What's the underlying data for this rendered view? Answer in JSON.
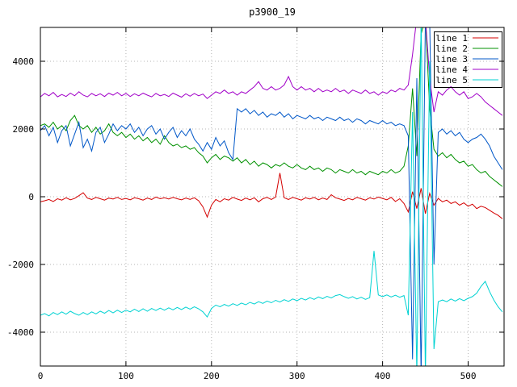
{
  "chart_data": {
    "type": "line",
    "title": "p3900_19",
    "xlabel": "",
    "ylabel": "",
    "xlim": [
      0,
      542
    ],
    "ylim": [
      -5000,
      5000
    ],
    "xticks": [
      0,
      100,
      200,
      300,
      400,
      500
    ],
    "yticks": [
      -4000,
      -2000,
      0,
      2000,
      4000
    ],
    "grid": true,
    "legend_position": "top-right",
    "x_start": 0,
    "x_step": 5,
    "series": [
      {
        "name": "line 1",
        "color": "#d40000",
        "values": [
          -150,
          -120,
          -80,
          -140,
          -60,
          -100,
          -30,
          -90,
          -50,
          30,
          120,
          -40,
          -80,
          -20,
          -60,
          -100,
          -40,
          -70,
          -20,
          -80,
          -50,
          -90,
          -30,
          -60,
          -100,
          -40,
          -80,
          -10,
          -60,
          -30,
          -70,
          -20,
          -60,
          -90,
          -40,
          -80,
          -30,
          -120,
          -300,
          -600,
          -250,
          -80,
          -150,
          -60,
          -100,
          -20,
          -70,
          -110,
          -40,
          -90,
          -30,
          -150,
          -60,
          -20,
          -80,
          -10,
          700,
          -30,
          -80,
          -20,
          -60,
          -100,
          -30,
          -70,
          -20,
          -90,
          -40,
          -80,
          60,
          -30,
          -70,
          -110,
          -50,
          -90,
          -20,
          -60,
          -100,
          -30,
          -70,
          -10,
          -50,
          -90,
          -20,
          -140,
          -60,
          -200,
          -450,
          150,
          -350,
          250,
          -500,
          100,
          -250,
          -50,
          -150,
          -100,
          -200,
          -150,
          -250,
          -180,
          -280,
          -220,
          -350,
          -280,
          -320,
          -400,
          -480,
          -550,
          -650
        ]
      },
      {
        "name": "line 2",
        "color": "#009100",
        "values": [
          2100,
          2150,
          2050,
          2200,
          2000,
          2100,
          1950,
          2250,
          2400,
          2100,
          2000,
          2100,
          1900,
          2050,
          1850,
          1950,
          2150,
          1900,
          1800,
          1900,
          1750,
          1850,
          1700,
          1800,
          1650,
          1750,
          1600,
          1700,
          1550,
          1800,
          1600,
          1500,
          1550,
          1450,
          1500,
          1400,
          1450,
          1300,
          1200,
          1000,
          1150,
          1250,
          1100,
          1200,
          1150,
          1050,
          1150,
          1000,
          1100,
          950,
          1050,
          900,
          1000,
          950,
          850,
          950,
          900,
          1000,
          900,
          850,
          950,
          850,
          800,
          900,
          800,
          850,
          750,
          850,
          800,
          700,
          800,
          750,
          700,
          800,
          700,
          750,
          650,
          750,
          700,
          650,
          750,
          700,
          800,
          700,
          750,
          900,
          1500,
          3200,
          1200,
          4800,
          5300,
          2600,
          1400,
          1200,
          1300,
          1150,
          1250,
          1100,
          1000,
          1050,
          900,
          950,
          800,
          700,
          750,
          600,
          500,
          400,
          300
        ]
      },
      {
        "name": "line 3",
        "color": "#0057c8",
        "values": [
          1950,
          2100,
          1800,
          2050,
          1600,
          1950,
          2100,
          1500,
          1850,
          2200,
          1450,
          1700,
          1350,
          1900,
          2050,
          1600,
          1850,
          2150,
          1950,
          2100,
          2000,
          2150,
          1900,
          2050,
          1800,
          2000,
          2100,
          1850,
          2000,
          1700,
          1900,
          2050,
          1750,
          1950,
          1800,
          2000,
          1700,
          1550,
          1350,
          1600,
          1400,
          1750,
          1500,
          1650,
          1300,
          1100,
          2600,
          2500,
          2600,
          2450,
          2550,
          2400,
          2500,
          2350,
          2450,
          2400,
          2500,
          2350,
          2450,
          2300,
          2400,
          2350,
          2300,
          2400,
          2300,
          2350,
          2250,
          2350,
          2300,
          2250,
          2350,
          2250,
          2300,
          2200,
          2300,
          2250,
          2150,
          2250,
          2200,
          2150,
          2250,
          2150,
          2200,
          2100,
          2150,
          2100,
          1800,
          -4800,
          3500,
          -5300,
          5300,
          5200,
          -2000,
          1900,
          2000,
          1850,
          1950,
          1800,
          1900,
          1700,
          1600,
          1700,
          1750,
          1850,
          1700,
          1500,
          1200,
          1000,
          800
        ]
      },
      {
        "name": "line 4",
        "color": "#a100c8",
        "values": [
          2950,
          3050,
          2980,
          3080,
          2950,
          3020,
          2960,
          3060,
          2980,
          3100,
          3000,
          2950,
          3050,
          2980,
          3040,
          2960,
          3060,
          3000,
          3080,
          2980,
          3050,
          2960,
          3040,
          2980,
          3060,
          3000,
          2950,
          3050,
          2980,
          3020,
          2960,
          3060,
          3000,
          2940,
          3040,
          2970,
          3050,
          2980,
          3030,
          2900,
          3000,
          3100,
          3050,
          3150,
          3050,
          3100,
          3000,
          3100,
          3050,
          3150,
          3250,
          3400,
          3200,
          3150,
          3250,
          3150,
          3200,
          3300,
          3550,
          3250,
          3150,
          3250,
          3150,
          3200,
          3100,
          3200,
          3100,
          3150,
          3100,
          3200,
          3100,
          3150,
          3050,
          3150,
          3100,
          3050,
          3150,
          3050,
          3100,
          3000,
          3100,
          3050,
          3150,
          3100,
          3200,
          3150,
          3300,
          4200,
          5300,
          5300,
          5300,
          3500,
          2500,
          3100,
          3000,
          3150,
          3250,
          3100,
          3000,
          3100,
          2900,
          2950,
          3050,
          2950,
          2800,
          2700,
          2600,
          2500,
          2400
        ]
      },
      {
        "name": "line 5",
        "color": "#00d2d2",
        "values": [
          -3500,
          -3450,
          -3520,
          -3420,
          -3480,
          -3400,
          -3470,
          -3380,
          -3450,
          -3500,
          -3420,
          -3480,
          -3400,
          -3460,
          -3380,
          -3440,
          -3360,
          -3430,
          -3350,
          -3420,
          -3350,
          -3400,
          -3320,
          -3390,
          -3310,
          -3380,
          -3300,
          -3360,
          -3290,
          -3350,
          -3280,
          -3340,
          -3270,
          -3330,
          -3260,
          -3320,
          -3250,
          -3310,
          -3400,
          -3550,
          -3300,
          -3200,
          -3250,
          -3180,
          -3230,
          -3160,
          -3210,
          -3140,
          -3190,
          -3120,
          -3170,
          -3100,
          -3150,
          -3080,
          -3130,
          -3060,
          -3110,
          -3040,
          -3090,
          -3020,
          -3070,
          -3000,
          -3050,
          -2980,
          -3030,
          -2960,
          -3010,
          -2940,
          -2990,
          -2920,
          -2890,
          -2950,
          -3000,
          -2950,
          -3020,
          -2970,
          -3030,
          -2980,
          -1600,
          -2900,
          -2950,
          -2900,
          -2960,
          -2910,
          -2970,
          -2920,
          -3500,
          2500,
          -5300,
          5300,
          -5300,
          4000,
          -4500,
          -3100,
          -3050,
          -3100,
          -3020,
          -3080,
          -3010,
          -3070,
          -3000,
          -2950,
          -2850,
          -2650,
          -2500,
          -2800,
          -3050,
          -3250,
          -3400
        ]
      }
    ],
    "colors": {
      "grid": "#b4b4b4",
      "axis": "#000000",
      "background": "#ffffff"
    }
  }
}
